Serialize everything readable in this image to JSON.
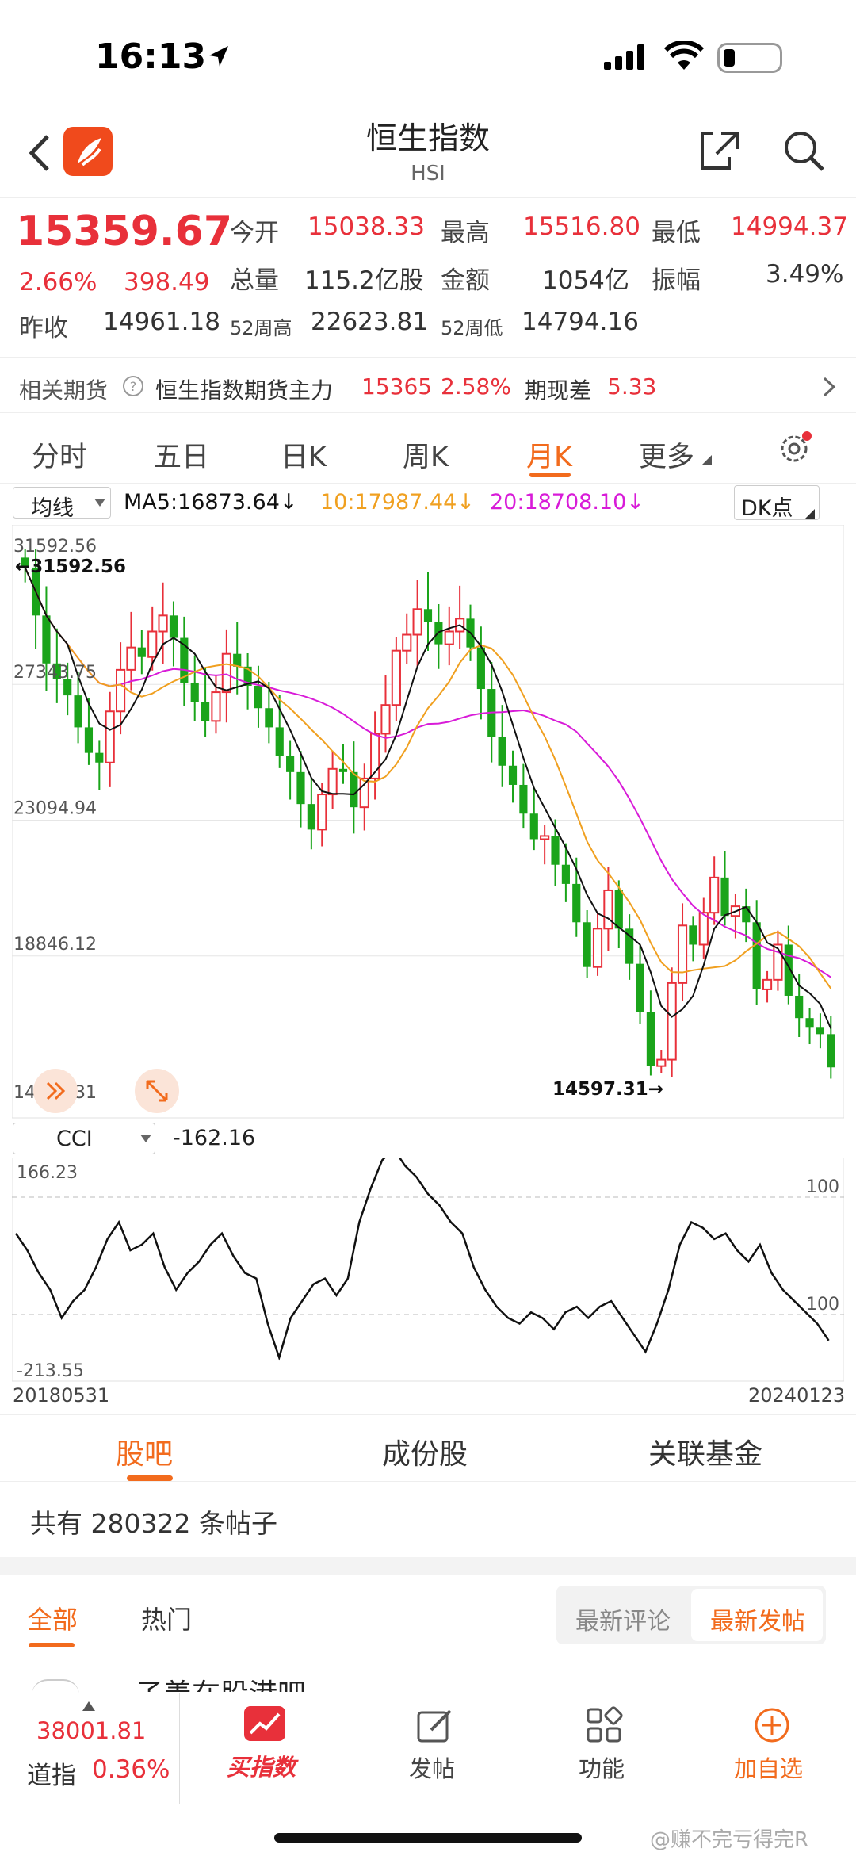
{
  "status": {
    "time": "16:13"
  },
  "header": {
    "title": "恒生指数",
    "code": "HSI"
  },
  "quote": {
    "price": "15359.67",
    "pct": "2.66%",
    "chg": "398.49",
    "open_label": "今开",
    "open": "15038.33",
    "high_label": "最高",
    "high": "15516.80",
    "low_label": "最低",
    "low": "14994.37",
    "vol_label": "总量",
    "vol": "115.2亿股",
    "amt_label": "金额",
    "amt": "1054亿",
    "amp_label": "振幅",
    "amp": "3.49%",
    "prev_label": "昨收",
    "prev": "14961.18",
    "w52h_label": "52周高",
    "w52h": "22623.81",
    "w52l_label": "52周低",
    "w52l": "14794.16"
  },
  "futures": {
    "label": "相关期货",
    "name": "恒生指数期货主力",
    "price": "15365",
    "pct": "2.58%",
    "basis_label": "期现差",
    "basis": "5.33"
  },
  "tabs": [
    "分时",
    "五日",
    "日K",
    "周K",
    "月K",
    "更多"
  ],
  "active_tab": "月K",
  "ma": {
    "select": "均线",
    "ma5": "MA5:16873.64↓",
    "ma10": "10:17987.44↓",
    "ma20": "20:18708.10↓",
    "dk": "DK点"
  },
  "chart_data": {
    "type": "candlestick",
    "y_ticks": [
      "31592.56",
      "27343.75",
      "23094.94",
      "18846.12",
      "14597.31"
    ],
    "max_label": "31592.56",
    "min_label": "14597.31",
    "ylim": [
      14597.31,
      31592.56
    ],
    "start_date": "20180531",
    "end_date": "20240123",
    "ma_colors": {
      "ma5": "#111111",
      "ma10": "#f0a020",
      "ma20": "#d81bd8"
    },
    "up_color": "#e8303a",
    "down_color": "#1aa41a"
  },
  "cci": {
    "select": "CCI",
    "value": "-162.16",
    "top": "166.23",
    "bottom": "-213.55",
    "ref_top": "100",
    "ref_bottom": "100"
  },
  "section_tabs": [
    "股吧",
    "成份股",
    "关联基金"
  ],
  "posts": {
    "count_text": "共有 280322 条帖子",
    "filter_all": "全部",
    "filter_hot": "热门",
    "sort_comment": "最新评论",
    "sort_post": "最新发帖",
    "preview": "子善在股港吧"
  },
  "bottom": {
    "index_value": "38001.81",
    "index_name": "道指",
    "index_pct": "0.36%",
    "buy": "买指数",
    "post": "发帖",
    "func": "功能",
    "add": "加自选"
  },
  "watermark": "@赚不完亏得完R"
}
